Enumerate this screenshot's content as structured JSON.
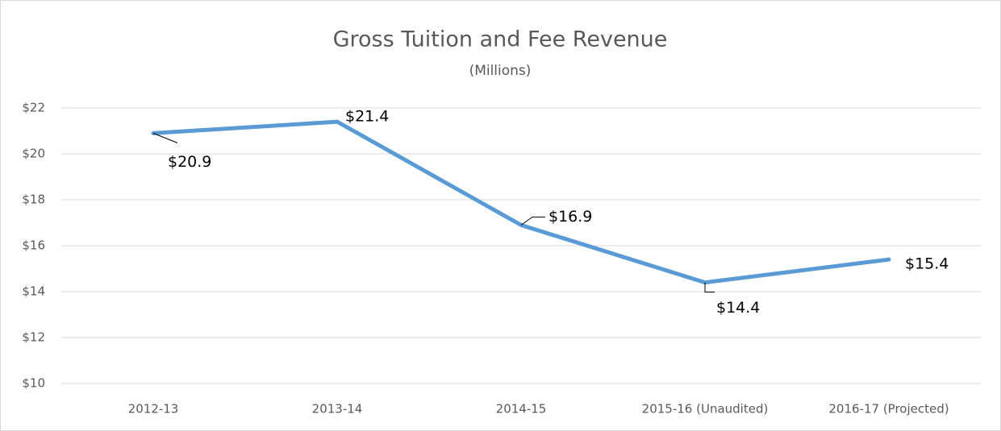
{
  "chart_data": {
    "type": "line",
    "title": "Gross Tuition and Fee Revenue",
    "subtitle": "(Millions)",
    "categories": [
      "2012-13",
      "2013-14",
      "2014-15",
      "2015-16 (Unaudited)",
      "2016-17 (Projected)"
    ],
    "values": [
      20.9,
      21.4,
      16.9,
      14.4,
      15.4
    ],
    "value_labels": [
      "$20.9",
      "$21.4",
      "$16.9",
      "$14.4",
      "$15.4"
    ],
    "color": "#5b9bd5",
    "ylim": [
      10,
      22
    ],
    "yticks": [
      {
        "value": 10,
        "label": "$10"
      },
      {
        "value": 12,
        "label": "$12"
      },
      {
        "value": 14,
        "label": "$14"
      },
      {
        "value": 16,
        "label": "$16"
      },
      {
        "value": 18,
        "label": "$18"
      },
      {
        "value": 20,
        "label": "$20"
      },
      {
        "value": 22,
        "label": "$22"
      }
    ],
    "grid": true
  }
}
